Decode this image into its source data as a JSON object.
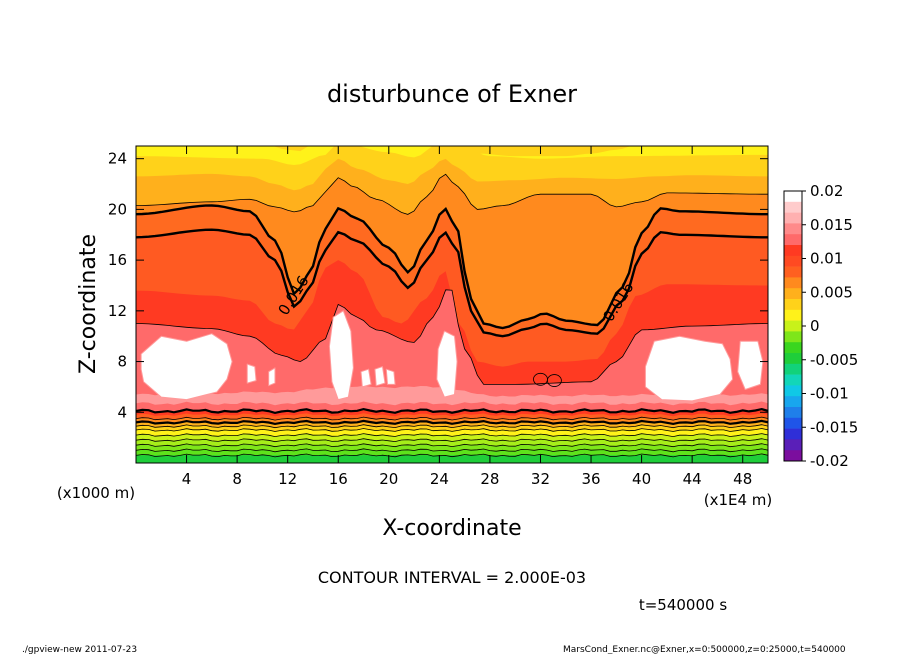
{
  "chart_data": {
    "type": "heatmap",
    "title": "disturbunce of Exner",
    "xlabel": "X-coordinate",
    "ylabel": "Z-coordinate",
    "x_unit_left": "(x1000 m)",
    "x_unit_right": "(x1E4 m)",
    "xlim": [
      0,
      50
    ],
    "ylim": [
      0,
      25
    ],
    "x_ticks": [
      4,
      8,
      12,
      16,
      20,
      24,
      28,
      32,
      36,
      40,
      44,
      48
    ],
    "y_ticks": [
      4,
      8,
      12,
      16,
      20,
      24
    ],
    "contour_labels": [
      {
        "text": "0.016",
        "x": 12.8,
        "z": 13.0
      },
      {
        "text": "0.016",
        "x": 38.5,
        "z": 12.5
      }
    ],
    "levels": [
      -0.02,
      -0.018,
      -0.016,
      -0.014,
      -0.012,
      -0.01,
      -0.008,
      -0.006,
      -0.004,
      -0.002,
      0,
      0.002,
      0.004,
      0.006,
      0.008,
      0.01,
      0.012,
      0.014,
      0.016,
      0.018,
      0.02
    ],
    "level_colors": [
      "#7b0e9e",
      "#5a1fb8",
      "#2f2fd8",
      "#1f55e8",
      "#1f7fea",
      "#18a6ee",
      "#10c8e6",
      "#12d6b8",
      "#12d27a",
      "#1fce3a",
      "#3ad61f",
      "#7ee61a",
      "#c8f21a",
      "#fff21a",
      "#ffd21a",
      "#ffb01c",
      "#ff8a1e",
      "#ff6020",
      "#ff3a22",
      "#ff6a6a",
      "#ff9a9a",
      "#ffffff"
    ],
    "colorbar_ticks": [
      "0.02",
      "0.015",
      "0.01",
      "0.005",
      "0",
      "-0.005",
      "-0.01",
      "-0.015",
      "-0.02"
    ]
  },
  "annotations": {
    "contour_interval": "CONTOUR INTERVAL = 2.000E-03",
    "time": "t=540000 s",
    "footer_left": "./gpview-new   2011-07-23",
    "footer_right": "MarsCond_Exner.nc@Exner,x=0:500000,z=0:25000,t=540000"
  }
}
